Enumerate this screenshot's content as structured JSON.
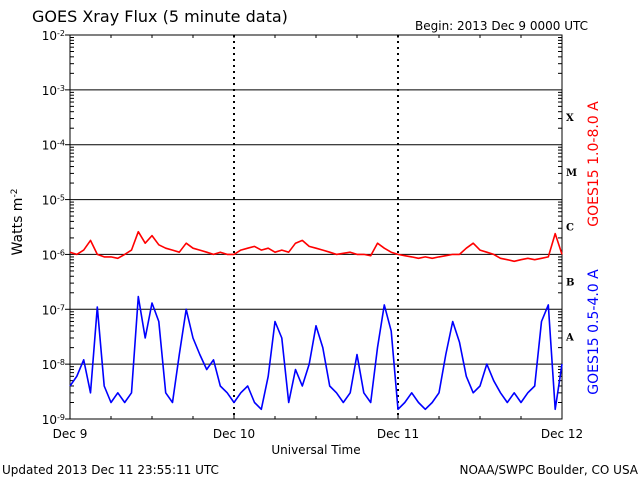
{
  "header": {
    "title": "GOES Xray Flux (5 minute data)",
    "begin": "Begin:  2013 Dec 9 0000 UTC"
  },
  "footer": {
    "updated": "Updated 2013 Dec 11 23:55:11 UTC",
    "credit": "NOAA/SWPC Boulder, CO USA"
  },
  "chart_data": {
    "type": "line",
    "title": "GOES Xray Flux (5 minute data)",
    "xlabel": "Universal Time",
    "ylabel_base": "Watts m",
    "ylabel_exp": "-2",
    "yscale": "log",
    "ylim": [
      1e-09,
      0.01
    ],
    "xlim": [
      0,
      72
    ],
    "x_units": "hours since 2013 Dec 9 0000 UTC",
    "x_ticks": [
      {
        "x": 0,
        "label": "Dec 9"
      },
      {
        "x": 24,
        "label": "Dec 10"
      },
      {
        "x": 48,
        "label": "Dec 11"
      },
      {
        "x": 72,
        "label": "Dec 12"
      }
    ],
    "y_ticks": [
      {
        "exp": -2,
        "label": "10",
        "sup": "-2"
      },
      {
        "exp": -3,
        "label": "10",
        "sup": "-3"
      },
      {
        "exp": -4,
        "label": "10",
        "sup": "-4"
      },
      {
        "exp": -5,
        "label": "10",
        "sup": "-5"
      },
      {
        "exp": -6,
        "label": "10",
        "sup": "-6"
      },
      {
        "exp": -7,
        "label": "10",
        "sup": "-7"
      },
      {
        "exp": -8,
        "label": "10",
        "sup": "-8"
      },
      {
        "exp": -9,
        "label": "10",
        "sup": "-9"
      }
    ],
    "flare_classes": [
      {
        "label": "X",
        "y": 0.00032
      },
      {
        "label": "M",
        "y": 3.2e-05
      },
      {
        "label": "C",
        "y": 3.2e-06
      },
      {
        "label": "B",
        "y": 3.2e-07
      },
      {
        "label": "A",
        "y": 3.2e-08
      }
    ],
    "series": [
      {
        "name": "GOES15 1.0-8.0 A",
        "color": "#ff0000",
        "x": [
          0,
          1,
          2,
          3,
          4,
          5,
          6,
          7,
          8,
          9,
          10,
          11,
          12,
          13,
          14,
          15,
          16,
          17,
          18,
          19,
          20,
          21,
          22,
          23,
          24,
          25,
          26,
          27,
          28,
          29,
          30,
          31,
          32,
          33,
          34,
          35,
          36,
          37,
          38,
          39,
          40,
          41,
          42,
          43,
          44,
          45,
          46,
          47,
          48,
          49,
          50,
          51,
          52,
          53,
          54,
          55,
          56,
          57,
          58,
          59,
          60,
          61,
          62,
          63,
          64,
          65,
          66,
          67,
          68,
          69,
          70,
          71,
          72
        ],
        "y": [
          1.1e-06,
          1e-06,
          1.2e-06,
          1.8e-06,
          1e-06,
          9e-07,
          9e-07,
          8.5e-07,
          1e-06,
          1.2e-06,
          2.6e-06,
          1.6e-06,
          2.2e-06,
          1.5e-06,
          1.3e-06,
          1.2e-06,
          1.1e-06,
          1.6e-06,
          1.3e-06,
          1.2e-06,
          1.1e-06,
          1e-06,
          1.1e-06,
          1e-06,
          1e-06,
          1.2e-06,
          1.3e-06,
          1.4e-06,
          1.2e-06,
          1.3e-06,
          1.1e-06,
          1.2e-06,
          1.1e-06,
          1.6e-06,
          1.8e-06,
          1.4e-06,
          1.3e-06,
          1.2e-06,
          1.1e-06,
          1e-06,
          1.05e-06,
          1.1e-06,
          1e-06,
          1e-06,
          9.5e-07,
          1.6e-06,
          1.3e-06,
          1.1e-06,
          1e-06,
          9.5e-07,
          9e-07,
          8.5e-07,
          9e-07,
          8.5e-07,
          9e-07,
          9.5e-07,
          1e-06,
          1e-06,
          1.3e-06,
          1.6e-06,
          1.2e-06,
          1.1e-06,
          1e-06,
          8.5e-07,
          8e-07,
          7.5e-07,
          8e-07,
          8.5e-07,
          8e-07,
          8.5e-07,
          9e-07,
          2.4e-06,
          1e-06
        ]
      },
      {
        "name": "GOES15 0.5-4.0 A",
        "color": "#0000ff",
        "x": [
          0,
          1,
          2,
          3,
          4,
          5,
          6,
          7,
          8,
          9,
          10,
          11,
          12,
          13,
          14,
          15,
          16,
          17,
          18,
          19,
          20,
          21,
          22,
          23,
          24,
          25,
          26,
          27,
          28,
          29,
          30,
          31,
          32,
          33,
          34,
          35,
          36,
          37,
          38,
          39,
          40,
          41,
          42,
          43,
          44,
          45,
          46,
          47,
          48,
          49,
          50,
          51,
          52,
          53,
          54,
          55,
          56,
          57,
          58,
          59,
          60,
          61,
          62,
          63,
          64,
          65,
          66,
          67,
          68,
          69,
          70,
          71,
          72
        ],
        "y": [
          4e-09,
          6e-09,
          1.2e-08,
          3e-09,
          1.1e-07,
          4e-09,
          2e-09,
          3e-09,
          2e-09,
          3e-09,
          1.7e-07,
          3e-08,
          1.3e-07,
          6e-08,
          3e-09,
          2e-09,
          1.5e-08,
          1e-07,
          3e-08,
          1.5e-08,
          8e-09,
          1.2e-08,
          4e-09,
          3e-09,
          2e-09,
          3e-09,
          4e-09,
          2e-09,
          1.5e-09,
          6e-09,
          6e-08,
          3e-08,
          2e-09,
          8e-09,
          4e-09,
          1e-08,
          5e-08,
          2e-08,
          4e-09,
          3e-09,
          2e-09,
          3e-09,
          1.5e-08,
          3e-09,
          2e-09,
          2e-08,
          1.2e-07,
          4e-08,
          1.5e-09,
          2e-09,
          3e-09,
          2e-09,
          1.5e-09,
          2e-09,
          3e-09,
          1.5e-08,
          6e-08,
          2.5e-08,
          6e-09,
          3e-09,
          4e-09,
          1e-08,
          5e-09,
          3e-09,
          2e-09,
          3e-09,
          2e-09,
          3e-09,
          4e-09,
          6e-08,
          1.2e-07,
          1.5e-09,
          1e-08
        ]
      }
    ]
  }
}
